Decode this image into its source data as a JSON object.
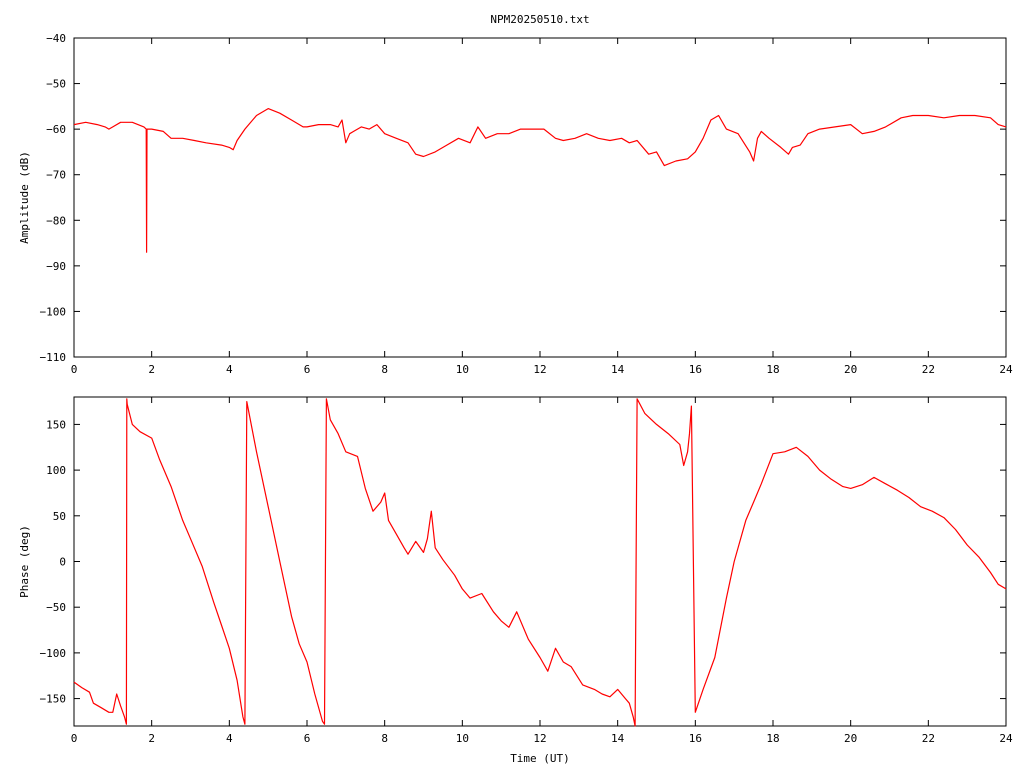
{
  "title": "NPM20250510.txt",
  "colors": {
    "series": "#ff0000",
    "axis": "#000000",
    "background": "#ffffff"
  },
  "chart_data": [
    {
      "type": "line",
      "panel": "amplitude",
      "title": "NPM20250510.txt",
      "xlabel": "",
      "ylabel": "Amplitude (dB)",
      "xlim": [
        0,
        24
      ],
      "ylim": [
        -110,
        -40
      ],
      "xticks": [
        0,
        2,
        4,
        6,
        8,
        10,
        12,
        14,
        16,
        18,
        20,
        22,
        24
      ],
      "yticks": [
        -110,
        -100,
        -90,
        -80,
        -70,
        -60,
        -50,
        -40
      ],
      "ytick_labels": [
        "−110",
        "−100",
        "−90",
        "−80",
        "−70",
        "−60",
        "−50",
        "−40"
      ],
      "grid": false,
      "series": [
        {
          "x": [
            0,
            0.3,
            0.6,
            0.8,
            0.9,
            1.0,
            1.2,
            1.5,
            1.8,
            1.86,
            1.87,
            1.88,
            1.89,
            2.0,
            2.3,
            2.5,
            2.8,
            3.1,
            3.4,
            3.8,
            4.0,
            4.1,
            4.2,
            4.4,
            4.7,
            5.0,
            5.3,
            5.6,
            5.9,
            6.0,
            6.3,
            6.6,
            6.8,
            6.9,
            7.0,
            7.1,
            7.2,
            7.4,
            7.6,
            7.8,
            8.0,
            8.3,
            8.6,
            8.8,
            9.0,
            9.3,
            9.6,
            9.9,
            10.2,
            10.4,
            10.6,
            10.9,
            11.2,
            11.5,
            11.8,
            12.1,
            12.4,
            12.6,
            12.9,
            13.2,
            13.5,
            13.8,
            14.1,
            14.3,
            14.5,
            14.8,
            15.0,
            15.2,
            15.5,
            15.8,
            16.0,
            16.2,
            16.4,
            16.6,
            16.8,
            17.1,
            17.4,
            17.5,
            17.6,
            17.7,
            17.9,
            18.2,
            18.4,
            18.5,
            18.7,
            18.9,
            19.2,
            19.6,
            20.0,
            20.3,
            20.6,
            20.9,
            21.3,
            21.6,
            22.0,
            22.4,
            22.8,
            23.2,
            23.6,
            23.8,
            24.0
          ],
          "y": [
            -59,
            -58.5,
            -59,
            -59.5,
            -60,
            -59.5,
            -58.5,
            -58.5,
            -59.5,
            -60,
            -87,
            -60,
            -60,
            -60,
            -60.5,
            -62,
            -62,
            -62.5,
            -63,
            -63.5,
            -64,
            -64.5,
            -62.5,
            -60,
            -57,
            -55.5,
            -56.5,
            -58,
            -59.5,
            -59.5,
            -59,
            -59,
            -59.5,
            -58,
            -63,
            -61,
            -60.5,
            -59.5,
            -60,
            -59,
            -61,
            -62,
            -63,
            -65.5,
            -66,
            -65,
            -63.5,
            -62,
            -63,
            -59.5,
            -62,
            -61,
            -61,
            -60,
            -60,
            -60,
            -62,
            -62.5,
            -62,
            -61,
            -62,
            -62.5,
            -62,
            -63,
            -62.5,
            -65.5,
            -65,
            -68,
            -67,
            -66.5,
            -65,
            -62,
            -58,
            -57,
            -60,
            -61,
            -65,
            -67,
            -62,
            -60.5,
            -62,
            -64,
            -65.5,
            -64,
            -63.5,
            -61,
            -60,
            -59.5,
            -59,
            -61,
            -60.5,
            -59.5,
            -57.5,
            -57,
            -57,
            -57.5,
            -57,
            -57,
            -57.5,
            -59,
            -59.5
          ]
        }
      ]
    },
    {
      "type": "line",
      "panel": "phase",
      "title": "",
      "xlabel": "Time (UT)",
      "ylabel": "Phase (deg)",
      "xlim": [
        0,
        24
      ],
      "ylim": [
        -180,
        180
      ],
      "xticks": [
        0,
        2,
        4,
        6,
        8,
        10,
        12,
        14,
        16,
        18,
        20,
        22,
        24
      ],
      "yticks": [
        -150,
        -100,
        -50,
        0,
        50,
        100,
        150
      ],
      "ytick_labels": [
        "−150",
        "−100",
        "−50",
        "0",
        "50",
        "100",
        "150"
      ],
      "grid": false,
      "series": [
        {
          "x": [
            0,
            0.2,
            0.4,
            0.5,
            0.7,
            0.9,
            1.0,
            1.1,
            1.2,
            1.3,
            1.35,
            1.36,
            1.37,
            1.5,
            1.7,
            2.0,
            2.2,
            2.5,
            2.8,
            3.0,
            3.3,
            3.6,
            3.8,
            4.0,
            4.2,
            4.35,
            4.4,
            4.45,
            4.7,
            5.0,
            5.3,
            5.6,
            5.8,
            6.0,
            6.2,
            6.4,
            6.45,
            6.5,
            6.6,
            6.8,
            7.0,
            7.3,
            7.5,
            7.7,
            7.9,
            8.0,
            8.1,
            8.3,
            8.5,
            8.6,
            8.8,
            9.0,
            9.1,
            9.2,
            9.3,
            9.5,
            9.8,
            10.0,
            10.2,
            10.5,
            10.8,
            11.0,
            11.2,
            11.4,
            11.7,
            12.0,
            12.2,
            12.4,
            12.6,
            12.8,
            13.1,
            13.4,
            13.6,
            13.8,
            14.0,
            14.2,
            14.3,
            14.4,
            14.45,
            14.5,
            14.7,
            15.0,
            15.3,
            15.6,
            15.7,
            15.8,
            15.85,
            15.9,
            16.0,
            16.2,
            16.5,
            16.8,
            17.0,
            17.3,
            17.5,
            17.7,
            18.0,
            18.3,
            18.6,
            18.9,
            19.2,
            19.5,
            19.8,
            20.0,
            20.3,
            20.6,
            20.9,
            21.2,
            21.5,
            21.8,
            22.1,
            22.4,
            22.7,
            23.0,
            23.3,
            23.6,
            23.8,
            24.0
          ],
          "y": [
            -132,
            -138,
            -143,
            -155,
            -160,
            -165,
            -165,
            -145,
            -158,
            -170,
            -178,
            178,
            172,
            150,
            142,
            135,
            112,
            82,
            45,
            25,
            -5,
            -45,
            -70,
            -95,
            -130,
            -170,
            -178,
            175,
            120,
            60,
            0,
            -60,
            -90,
            -110,
            -145,
            -175,
            -178,
            178,
            155,
            140,
            120,
            115,
            80,
            55,
            65,
            75,
            45,
            30,
            15,
            8,
            22,
            10,
            25,
            55,
            15,
            2,
            -15,
            -30,
            -40,
            -35,
            -55,
            -65,
            -72,
            -55,
            -85,
            -105,
            -120,
            -95,
            -110,
            -115,
            -135,
            -140,
            -145,
            -148,
            -140,
            -150,
            -155,
            -170,
            -180,
            178,
            162,
            150,
            140,
            128,
            105,
            120,
            140,
            170,
            -165,
            -140,
            -105,
            -40,
            0,
            45,
            65,
            85,
            118,
            120,
            125,
            115,
            100,
            90,
            82,
            80,
            84,
            92,
            85,
            78,
            70,
            60,
            55,
            48,
            35,
            18,
            5,
            -12,
            -25,
            -30
          ]
        }
      ]
    }
  ]
}
